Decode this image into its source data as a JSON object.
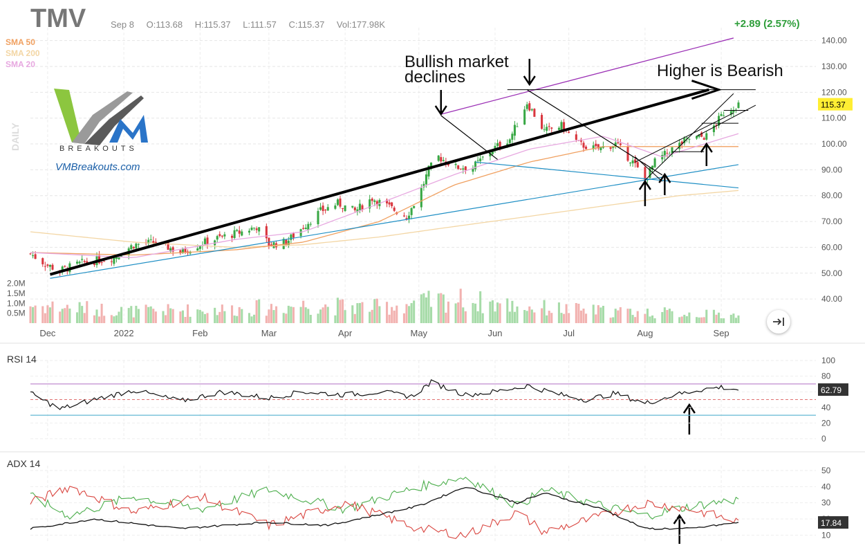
{
  "header": {
    "ticker": "TMV",
    "date": "Sep 8",
    "open": "O:113.68",
    "high": "H:115.37",
    "low": "L:111.57",
    "close": "C:115.37",
    "volume": "Vol:177.98K",
    "change": "+2.89 (2.57%)"
  },
  "sma_legend": [
    {
      "label": "SMA 50",
      "color": "#f0a060"
    },
    {
      "label": "SMA 200",
      "color": "#f3d6a4"
    },
    {
      "label": "SMA 20",
      "color": "#e7a8e0"
    }
  ],
  "logo": {
    "word": "BREAKOUTS",
    "url": "VMBreakouts.com"
  },
  "timeframe": "DAILY",
  "annotations": {
    "bullish": "Bullish market declines",
    "higher": "Higher is Bearish"
  },
  "price_panel": {
    "y_ticks": [
      "140.00",
      "130.00",
      "120.00",
      "110.00",
      "100.00",
      "90.00",
      "80.00",
      "70.00",
      "60.00",
      "50.00",
      "40.00"
    ],
    "volume_ticks": [
      "2.0M",
      "1.5M",
      "1.0M",
      "0.5M"
    ],
    "x_ticks": [
      "Dec",
      "2022",
      "Feb",
      "Mar",
      "Apr",
      "May",
      "Jun",
      "Jul",
      "Aug",
      "Sep"
    ],
    "last_price": "115.37"
  },
  "rsi_panel": {
    "title": "RSI 14",
    "y_ticks": [
      "100",
      "80",
      "60",
      "40",
      "20",
      "0"
    ],
    "last_value": "62.79"
  },
  "adx_panel": {
    "title": "ADX 14",
    "y_ticks": [
      "50",
      "40",
      "30",
      "20",
      "10"
    ],
    "last_value": "17.84"
  },
  "colors": {
    "up": "#39a845",
    "down": "#d9363e",
    "volume_up": "#a6dba8",
    "volume_down": "#f2b2b0",
    "sma50": "#f0a060",
    "sma200": "#f3d6a4",
    "sma20": "#e7a8e0",
    "last_price_bg": "#ffee33",
    "last_value_bg": "#333333",
    "rsi_overbought": "#c08bcf",
    "rsi_oversold": "#63b9d3",
    "adx_plus": "#4cae4c",
    "adx_minus": "#d9453f"
  },
  "chart_data": {
    "type": "candlestick",
    "title": "TMV",
    "period": "DAILY",
    "range": [
      "2021-11-24",
      "2022-09-08"
    ],
    "price_ylim": [
      32,
      145
    ],
    "last_bar": {
      "date": "Sep 8",
      "open": 113.68,
      "high": 115.37,
      "low": 111.57,
      "close": 115.37,
      "volume": "177.98K",
      "change": 2.89,
      "change_pct": 2.57
    },
    "close_path": [
      [
        "2021-11-24",
        57.5
      ],
      [
        "2021-12-01",
        53
      ],
      [
        "2021-12-06",
        51
      ],
      [
        "2021-12-15",
        54
      ],
      [
        "2021-12-28",
        56
      ],
      [
        "2022-01-05",
        61
      ],
      [
        "2022-01-14",
        62
      ],
      [
        "2022-01-24",
        58
      ],
      [
        "2022-02-03",
        62
      ],
      [
        "2022-02-10",
        64
      ],
      [
        "2022-02-18",
        66
      ],
      [
        "2022-02-24",
        68
      ],
      [
        "2022-03-01",
        61
      ],
      [
        "2022-03-08",
        62
      ],
      [
        "2022-03-15",
        68
      ],
      [
        "2022-03-22",
        74
      ],
      [
        "2022-03-29",
        77
      ],
      [
        "2022-04-05",
        74
      ],
      [
        "2022-04-12",
        79
      ],
      [
        "2022-04-20",
        75
      ],
      [
        "2022-04-26",
        72
      ],
      [
        "2022-05-01",
        80
      ],
      [
        "2022-05-05",
        90
      ],
      [
        "2022-05-09",
        95
      ],
      [
        "2022-05-16",
        91
      ],
      [
        "2022-05-23",
        91
      ],
      [
        "2022-05-31",
        98
      ],
      [
        "2022-06-07",
        102
      ],
      [
        "2022-06-14",
        116
      ],
      [
        "2022-06-21",
        105
      ],
      [
        "2022-06-28",
        107
      ],
      [
        "2022-07-05",
        100
      ],
      [
        "2022-07-12",
        98
      ],
      [
        "2022-07-20",
        100
      ],
      [
        "2022-07-27",
        93
      ],
      [
        "2022-08-01",
        86
      ],
      [
        "2022-08-05",
        93
      ],
      [
        "2022-08-12",
        98
      ],
      [
        "2022-08-19",
        102
      ],
      [
        "2022-08-26",
        103
      ],
      [
        "2022-09-02",
        112
      ],
      [
        "2022-09-08",
        115.37
      ]
    ],
    "sma20_path": [
      [
        "2021-11-24",
        58
      ],
      [
        "2022-01-05",
        56
      ],
      [
        "2022-02-15",
        63
      ],
      [
        "2022-03-15",
        66
      ],
      [
        "2022-04-15",
        77
      ],
      [
        "2022-05-15",
        88
      ],
      [
        "2022-06-15",
        98
      ],
      [
        "2022-07-15",
        103
      ],
      [
        "2022-08-08",
        95
      ],
      [
        "2022-09-08",
        104
      ]
    ],
    "sma50_path": [
      [
        "2021-11-24",
        58
      ],
      [
        "2022-01-05",
        57
      ],
      [
        "2022-02-15",
        59
      ],
      [
        "2022-03-15",
        62
      ],
      [
        "2022-04-15",
        70
      ],
      [
        "2022-05-15",
        84
      ],
      [
        "2022-06-15",
        93
      ],
      [
        "2022-07-15",
        99
      ],
      [
        "2022-08-15",
        99
      ],
      [
        "2022-09-08",
        99
      ]
    ],
    "sma200_path": [
      [
        "2021-11-24",
        66
      ],
      [
        "2022-01-05",
        62
      ],
      [
        "2022-02-15",
        60
      ],
      [
        "2022-03-15",
        61
      ],
      [
        "2022-04-15",
        64
      ],
      [
        "2022-05-15",
        68
      ],
      [
        "2022-06-15",
        72
      ],
      [
        "2022-07-15",
        76
      ],
      [
        "2022-08-15",
        80
      ],
      [
        "2022-09-08",
        82
      ]
    ],
    "volume_path": [
      [
        "2021-11-24",
        0.9
      ],
      [
        "2022-01-05",
        0.6
      ],
      [
        "2022-02-15",
        0.7
      ],
      [
        "2022-03-15",
        0.9
      ],
      [
        "2022-04-15",
        0.8
      ],
      [
        "2022-05-15",
        1.2
      ],
      [
        "2022-06-15",
        0.8
      ],
      [
        "2022-07-15",
        0.6
      ],
      [
        "2022-08-15",
        0.5
      ],
      [
        "2022-09-08",
        0.4
      ]
    ],
    "volume_ylim": [
      0,
      2.4
    ],
    "rsi": {
      "name": "RSI 14",
      "ylim": [
        0,
        100
      ],
      "overbought": 70,
      "oversold": 30,
      "midline": 50,
      "last": 62.79,
      "path": [
        [
          "2021-11-24",
          58
        ],
        [
          "2021-12-06",
          38
        ],
        [
          "2021-12-20",
          50
        ],
        [
          "2022-01-05",
          62
        ],
        [
          "2022-01-24",
          48
        ],
        [
          "2022-02-10",
          60
        ],
        [
          "2022-03-01",
          52
        ],
        [
          "2022-03-15",
          60
        ],
        [
          "2022-04-01",
          56
        ],
        [
          "2022-04-15",
          60
        ],
        [
          "2022-04-28",
          54
        ],
        [
          "2022-05-06",
          72
        ],
        [
          "2022-05-20",
          56
        ],
        [
          "2022-06-01",
          60
        ],
        [
          "2022-06-14",
          68
        ],
        [
          "2022-06-28",
          56
        ],
        [
          "2022-07-08",
          50
        ],
        [
          "2022-07-20",
          58
        ],
        [
          "2022-08-01",
          45
        ],
        [
          "2022-08-12",
          55
        ],
        [
          "2022-08-22",
          62
        ],
        [
          "2022-09-01",
          66
        ],
        [
          "2022-09-08",
          62.79
        ]
      ]
    },
    "adx": {
      "name": "ADX 14",
      "ylim": [
        5,
        53
      ],
      "last": 17.84,
      "adx": [
        [
          "2021-11-24",
          14
        ],
        [
          "2021-12-20",
          20
        ],
        [
          "2022-01-24",
          14
        ],
        [
          "2022-02-28",
          18
        ],
        [
          "2022-03-25",
          16
        ],
        [
          "2022-05-01",
          28
        ],
        [
          "2022-05-20",
          40
        ],
        [
          "2022-06-10",
          30
        ],
        [
          "2022-06-21",
          36
        ],
        [
          "2022-07-15",
          26
        ],
        [
          "2022-08-01",
          14
        ],
        [
          "2022-08-20",
          14
        ],
        [
          "2022-09-08",
          17.84
        ]
      ],
      "plus_di": [
        [
          "2021-11-24",
          34
        ],
        [
          "2021-12-10",
          22
        ],
        [
          "2022-01-05",
          34
        ],
        [
          "2022-02-01",
          26
        ],
        [
          "2022-03-01",
          38
        ],
        [
          "2022-04-01",
          26
        ],
        [
          "2022-05-01",
          40
        ],
        [
          "2022-05-20",
          46
        ],
        [
          "2022-06-10",
          28
        ],
        [
          "2022-06-21",
          38
        ],
        [
          "2022-07-15",
          28
        ],
        [
          "2022-08-01",
          22
        ],
        [
          "2022-08-20",
          28
        ],
        [
          "2022-09-08",
          32
        ]
      ],
      "minus_di": [
        [
          "2021-11-24",
          30
        ],
        [
          "2021-12-10",
          40
        ],
        [
          "2022-01-05",
          24
        ],
        [
          "2022-02-01",
          34
        ],
        [
          "2022-03-01",
          16
        ],
        [
          "2022-04-01",
          30
        ],
        [
          "2022-05-01",
          14
        ],
        [
          "2022-05-20",
          10
        ],
        [
          "2022-06-10",
          24
        ],
        [
          "2022-06-21",
          12
        ],
        [
          "2022-07-15",
          22
        ],
        [
          "2022-08-01",
          30
        ],
        [
          "2022-08-20",
          26
        ],
        [
          "2022-09-08",
          18
        ]
      ]
    }
  }
}
